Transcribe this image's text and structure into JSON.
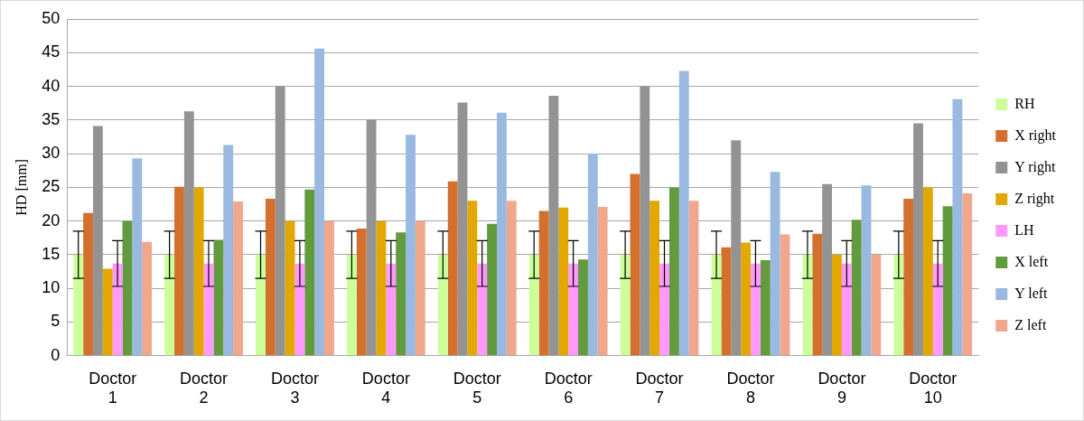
{
  "chart_data": {
    "type": "bar",
    "ylabel": "HD [mm]",
    "categories": [
      "Doctor 1",
      "Doctor 2",
      "Doctor 3",
      "Doctor 4",
      "Doctor 5",
      "Doctor 6",
      "Doctor 7",
      "Doctor 8",
      "Doctor 9",
      "Doctor 10"
    ],
    "series": [
      {
        "name": "RH",
        "color": "#ccff99",
        "values": [
          15,
          15,
          15,
          15,
          15,
          15,
          15,
          15,
          15,
          15
        ],
        "errors": [
          3.5,
          3.5,
          3.5,
          3.5,
          3.5,
          3.5,
          3.5,
          3.5,
          3.5,
          3.5
        ]
      },
      {
        "name": "X right",
        "color": "#d4702e",
        "values": [
          21.2,
          25.1,
          23.3,
          18.9,
          25.9,
          21.5,
          27,
          16.1,
          18.1,
          23.3
        ]
      },
      {
        "name": "Y right",
        "color": "#939393",
        "values": [
          34.1,
          36.3,
          40,
          35,
          37.6,
          38.6,
          40,
          32,
          25.5,
          34.5
        ]
      },
      {
        "name": "Z right",
        "color": "#e2a800",
        "values": [
          12.9,
          25,
          20,
          20,
          23,
          22,
          23,
          16.8,
          15,
          25
        ]
      },
      {
        "name": "LH",
        "color": "#ff99ff",
        "values": [
          13.7,
          13.7,
          13.7,
          13.7,
          13.7,
          13.7,
          13.7,
          13.7,
          13.7,
          13.7
        ],
        "errors": [
          3.4,
          3.4,
          3.4,
          3.4,
          3.4,
          3.4,
          3.4,
          3.4,
          3.4,
          3.4
        ]
      },
      {
        "name": "X left",
        "color": "#629a3e",
        "values": [
          20,
          17.2,
          24.7,
          18.3,
          19.6,
          14.3,
          25,
          14.2,
          20.2,
          22.2
        ]
      },
      {
        "name": "Y left",
        "color": "#99b9e0",
        "values": [
          29.3,
          31.3,
          45.6,
          32.8,
          36.1,
          30,
          42.3,
          27.3,
          25.3,
          38.1
        ]
      },
      {
        "name": "Z left",
        "color": "#f0a78b",
        "values": [
          16.9,
          22.9,
          20,
          20,
          23,
          22.1,
          23,
          18,
          15,
          24.1
        ]
      }
    ],
    "ylim": [
      0,
      50
    ],
    "yticks": [
      0,
      5,
      10,
      15,
      20,
      25,
      30,
      35,
      40,
      45,
      50
    ],
    "grid": "y",
    "legend": "right"
  }
}
